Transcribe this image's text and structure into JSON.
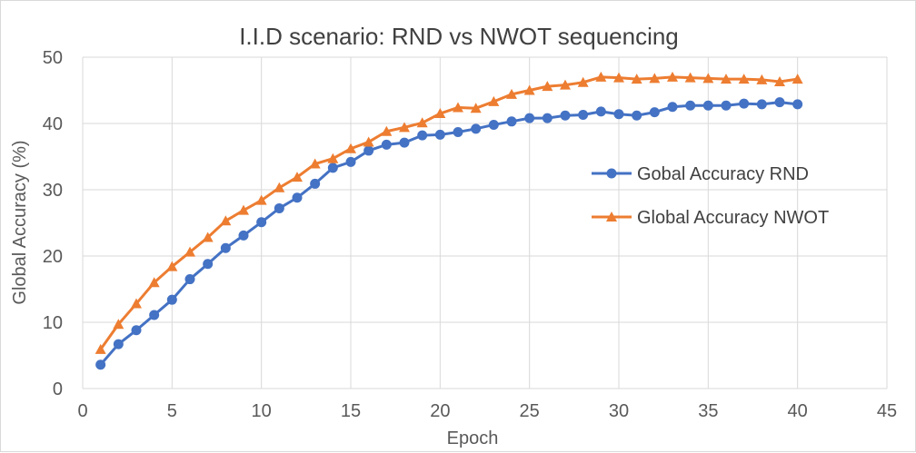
{
  "chart_data": {
    "type": "line",
    "title": "I.I.D scenario: RND vs NWOT sequencing",
    "xlabel": "Epoch",
    "ylabel": "Global Accuracy (%)",
    "xlim": [
      0,
      45
    ],
    "ylim": [
      0,
      50
    ],
    "x_ticks": [
      0,
      5,
      10,
      15,
      20,
      25,
      30,
      35,
      40,
      45
    ],
    "y_ticks": [
      0,
      10,
      20,
      30,
      40,
      50
    ],
    "grid": true,
    "legend_position": "right",
    "x": [
      1,
      2,
      3,
      4,
      5,
      6,
      7,
      8,
      9,
      10,
      11,
      12,
      13,
      14,
      15,
      16,
      17,
      18,
      19,
      20,
      21,
      22,
      23,
      24,
      25,
      26,
      27,
      28,
      29,
      30,
      31,
      32,
      33,
      34,
      35,
      36,
      37,
      38,
      39,
      40
    ],
    "series": [
      {
        "name": "Gobal Accuracy RND",
        "color": "#4472c4",
        "marker": "circle",
        "values": [
          3.6,
          6.7,
          8.8,
          11.1,
          13.4,
          16.5,
          18.8,
          21.2,
          23.1,
          25.1,
          27.2,
          28.8,
          30.9,
          33.3,
          34.2,
          35.9,
          36.8,
          37.1,
          38.2,
          38.3,
          38.7,
          39.2,
          39.8,
          40.3,
          40.8,
          40.8,
          41.2,
          41.3,
          41.8,
          41.4,
          41.2,
          41.7,
          42.5,
          42.7,
          42.7,
          42.7,
          43.0,
          42.9,
          43.2,
          42.9
        ]
      },
      {
        "name": "Global Accuracy NWOT",
        "color": "#ed7d31",
        "marker": "triangle",
        "values": [
          5.9,
          9.7,
          12.8,
          16.0,
          18.4,
          20.6,
          22.8,
          25.3,
          26.9,
          28.4,
          30.3,
          31.9,
          33.9,
          34.7,
          36.2,
          37.2,
          38.8,
          39.4,
          40.1,
          41.5,
          42.4,
          42.3,
          43.3,
          44.4,
          45.0,
          45.6,
          45.8,
          46.2,
          47.0,
          46.9,
          46.7,
          46.8,
          47.0,
          46.9,
          46.8,
          46.7,
          46.7,
          46.6,
          46.3,
          46.7
        ]
      }
    ]
  }
}
